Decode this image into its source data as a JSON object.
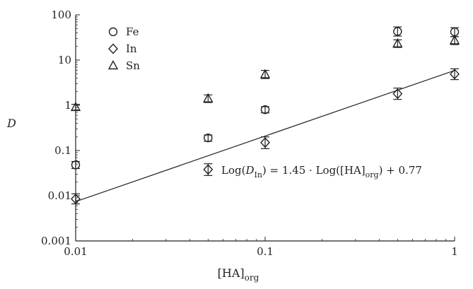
{
  "chart_data": {
    "type": "scatter",
    "xlabel": {
      "main": "[HA]",
      "sub": "org"
    },
    "ylabel": "D",
    "xscale": "log",
    "yscale": "log",
    "xlim": [
      0.01,
      1
    ],
    "ylim": [
      0.001,
      100
    ],
    "x_ticks": [
      "0.01",
      "0.1",
      "1"
    ],
    "y_ticks": [
      "0.001",
      "0.01",
      "0.1",
      "1",
      "10",
      "100"
    ],
    "legend_position": "top-left",
    "series": [
      {
        "name": "Fe",
        "marker": "circle",
        "points": [
          {
            "x": 0.01,
            "y": 0.048,
            "lo": 0.04,
            "hi": 0.057
          },
          {
            "x": 0.05,
            "y": 0.19,
            "lo": 0.16,
            "hi": 0.22
          },
          {
            "x": 0.1,
            "y": 0.8,
            "lo": 0.68,
            "hi": 0.93
          },
          {
            "x": 0.5,
            "y": 43,
            "lo": 34,
            "hi": 54
          },
          {
            "x": 1,
            "y": 42,
            "lo": 33,
            "hi": 52
          }
        ]
      },
      {
        "name": "In",
        "marker": "diamond",
        "points": [
          {
            "x": 0.01,
            "y": 0.0085,
            "lo": 0.0066,
            "hi": 0.011
          },
          {
            "x": 0.05,
            "y": 0.038,
            "lo": 0.028,
            "hi": 0.051
          },
          {
            "x": 0.1,
            "y": 0.15,
            "lo": 0.11,
            "hi": 0.2
          },
          {
            "x": 0.5,
            "y": 1.8,
            "lo": 1.35,
            "hi": 2.4
          },
          {
            "x": 1,
            "y": 4.9,
            "lo": 3.7,
            "hi": 6.4
          }
        ]
      },
      {
        "name": "Sn",
        "marker": "triangle",
        "points": [
          {
            "x": 0.01,
            "y": 0.9,
            "lo": 0.78,
            "hi": 1.05
          },
          {
            "x": 0.05,
            "y": 1.4,
            "lo": 1.15,
            "hi": 1.7
          },
          {
            "x": 0.1,
            "y": 4.8,
            "lo": 3.9,
            "hi": 5.9
          },
          {
            "x": 0.5,
            "y": 23,
            "lo": 19,
            "hi": 28
          },
          {
            "x": 1,
            "y": 27,
            "lo": 22,
            "hi": 33
          }
        ]
      }
    ],
    "fit_line": {
      "series": "In",
      "slope": 1.45,
      "intercept": 0.77,
      "equation": {
        "p1": "Log(",
        "D": "D",
        "Dsub": "In",
        "p2": ") = 1.45 · Log([HA]",
        "HAsub": "org",
        "p3": ") + 0.77"
      }
    }
  }
}
